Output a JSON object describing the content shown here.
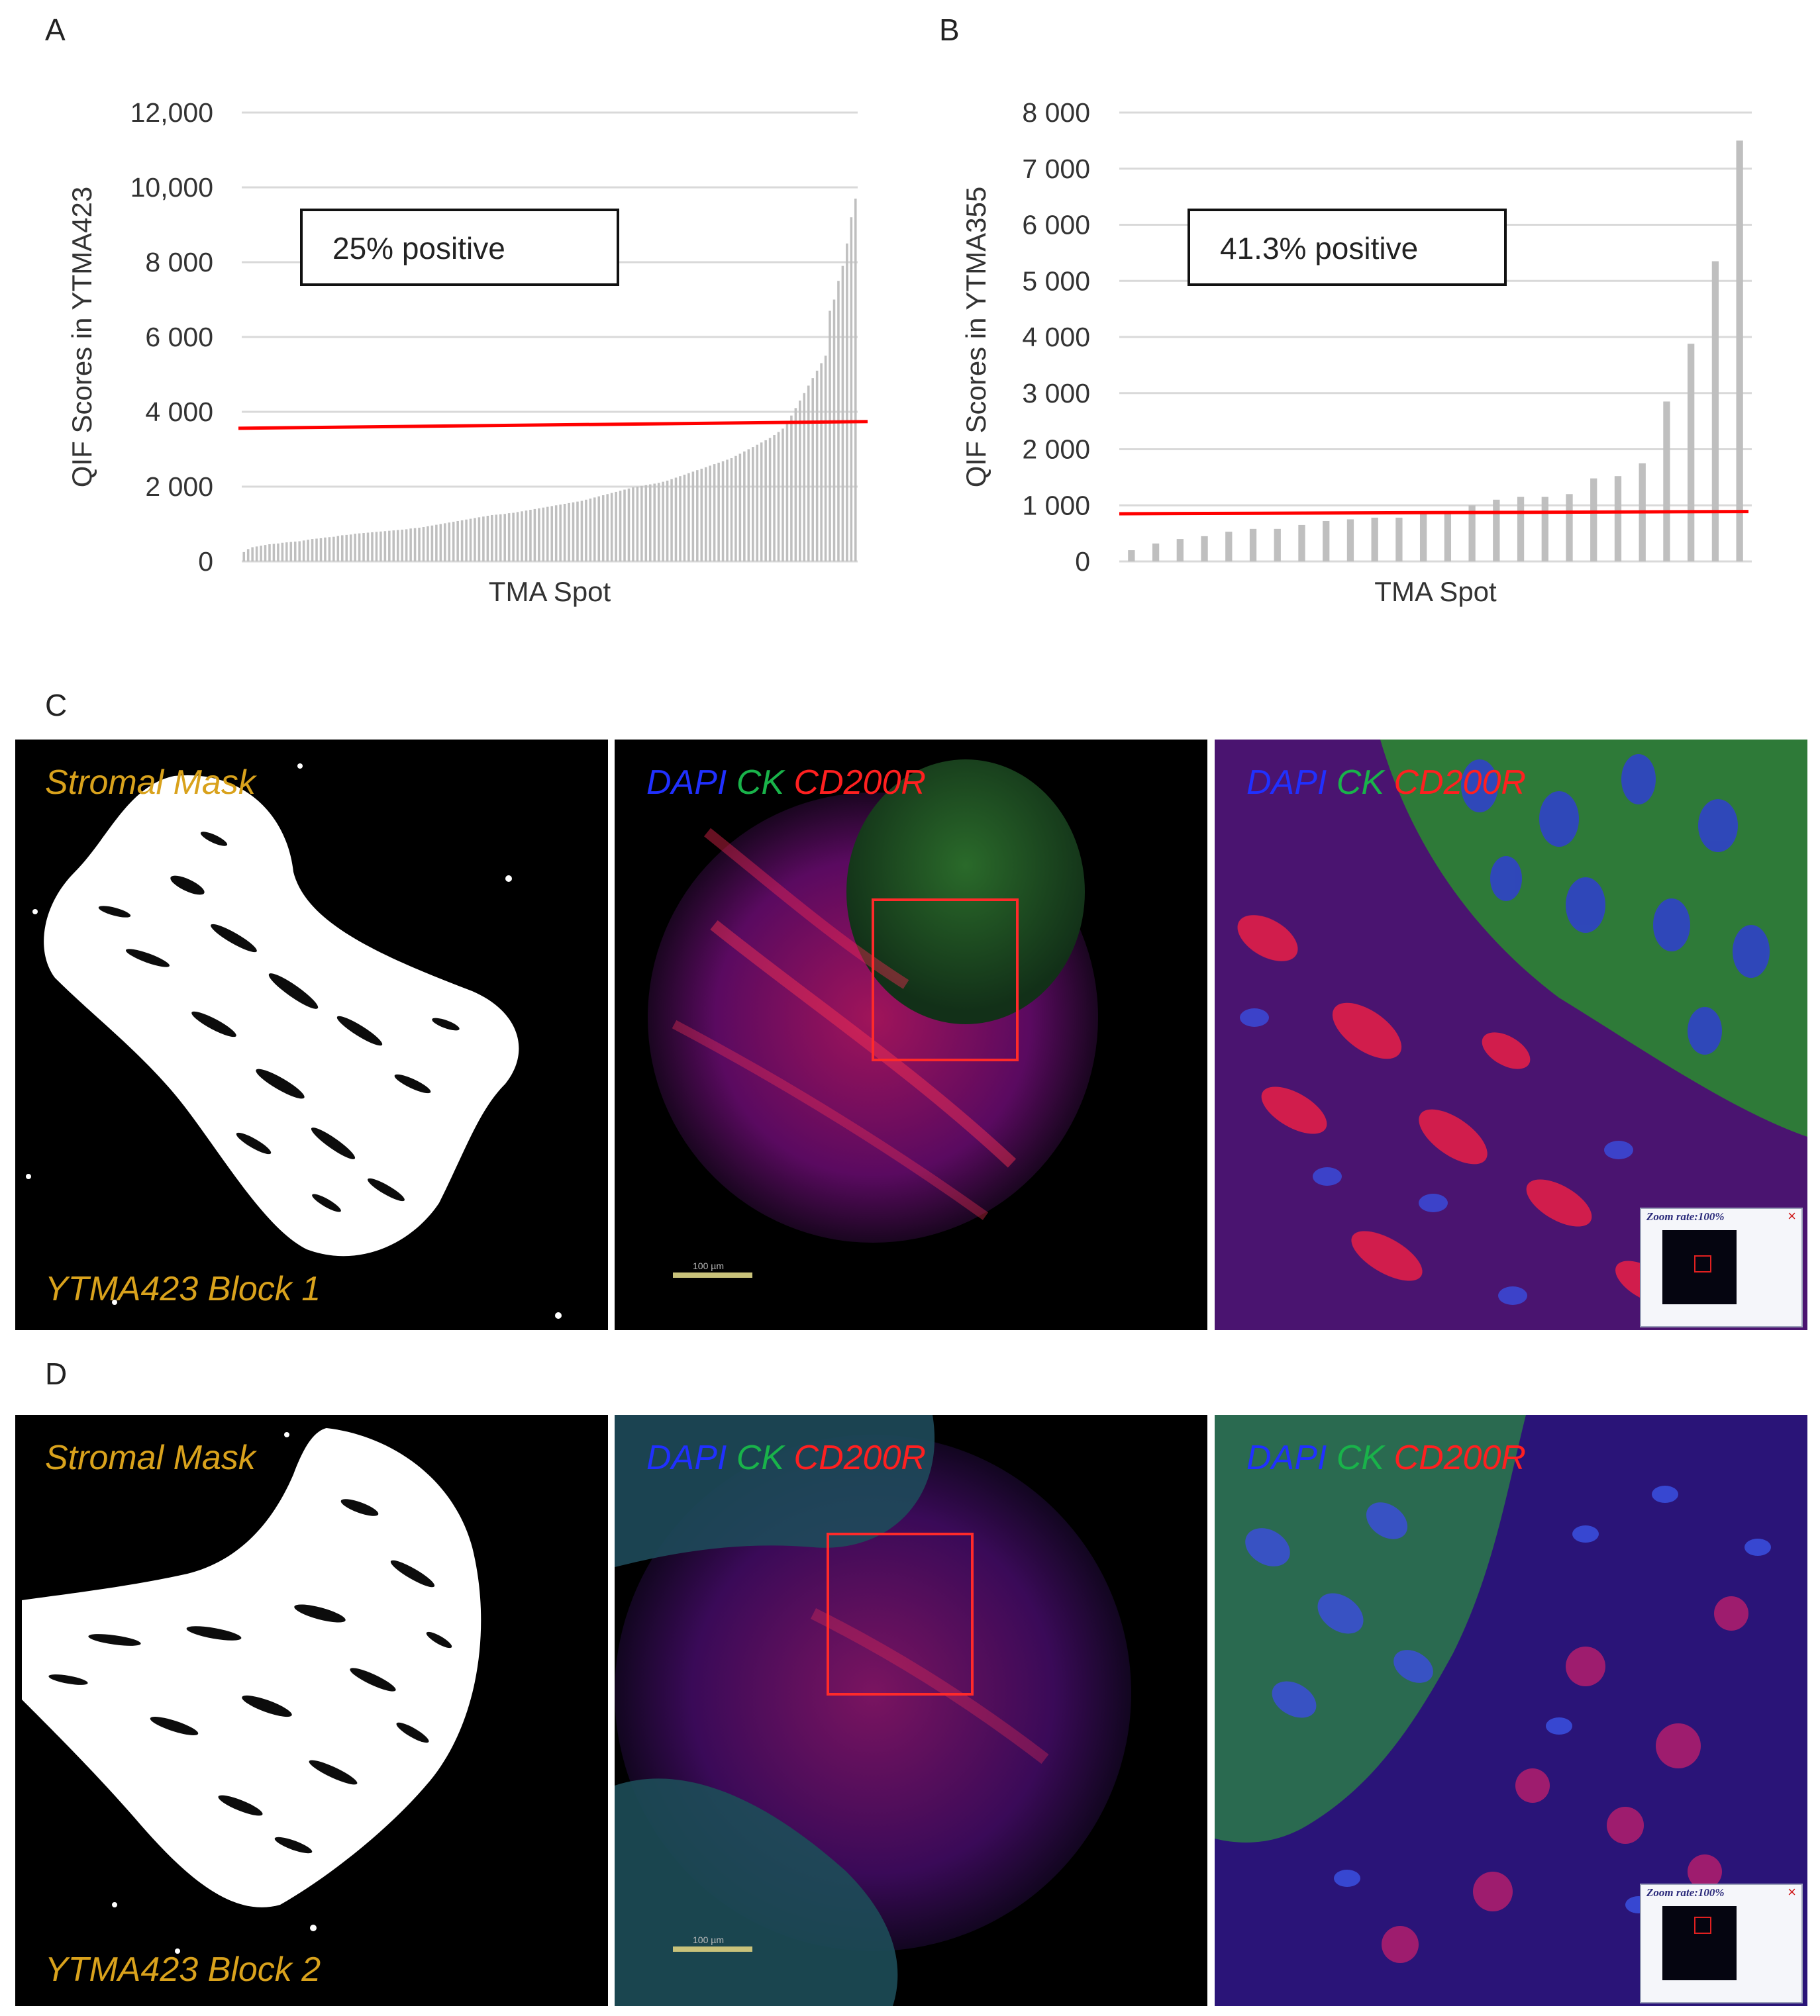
{
  "panels": {
    "a": "A",
    "b": "B",
    "c": "C",
    "d": "D"
  },
  "chart_data": [
    {
      "type": "bar",
      "panel": "A",
      "ylabel": "QIF Scores in YTMA423",
      "xlabel": "TMA Spot",
      "yticks": [
        "0",
        "2 000",
        "4 000",
        "6 000",
        "8 000",
        "10,000",
        "12,000"
      ],
      "ylim": [
        0,
        12000
      ],
      "grid": true,
      "bar_color": "#bfbfbf",
      "threshold": 3650,
      "threshold_color": "#ff0000",
      "annotation": "25% positive",
      "values": [
        250,
        330,
        380,
        400,
        420,
        440,
        460,
        470,
        480,
        500,
        510,
        520,
        530,
        540,
        560,
        580,
        600,
        610,
        620,
        640,
        650,
        660,
        680,
        700,
        710,
        720,
        740,
        750,
        760,
        770,
        780,
        790,
        800,
        810,
        820,
        830,
        840,
        850,
        860,
        880,
        890,
        900,
        920,
        940,
        960,
        980,
        1000,
        1020,
        1040,
        1060,
        1080,
        1100,
        1120,
        1140,
        1160,
        1180,
        1200,
        1220,
        1240,
        1250,
        1260,
        1270,
        1290,
        1300,
        1320,
        1340,
        1360,
        1380,
        1400,
        1420,
        1440,
        1460,
        1480,
        1500,
        1520,
        1540,
        1560,
        1580,
        1600,
        1620,
        1650,
        1680,
        1710,
        1740,
        1770,
        1800,
        1830,
        1860,
        1890,
        1920,
        1950,
        1980,
        2000,
        2020,
        2040,
        2060,
        2080,
        2100,
        2130,
        2160,
        2200,
        2240,
        2280,
        2320,
        2360,
        2400,
        2440,
        2480,
        2520,
        2560,
        2600,
        2640,
        2680,
        2720,
        2760,
        2820,
        2880,
        2940,
        3000,
        3060,
        3120,
        3180,
        3240,
        3300,
        3380,
        3460,
        3550,
        3700,
        3900,
        4100,
        4300,
        4500,
        4700,
        4900,
        5100,
        5300,
        5500,
        6700,
        7000,
        7500,
        7900,
        8500,
        9200,
        9700
      ]
    },
    {
      "type": "bar",
      "panel": "B",
      "ylabel": "QIF Scores in YTMA355",
      "xlabel": "TMA Spot",
      "yticks": [
        "0",
        "1 000",
        "2 000",
        "3 000",
        "4 000",
        "5 000",
        "6 000",
        "7 000",
        "8 000"
      ],
      "ylim": [
        0,
        8000
      ],
      "grid": true,
      "bar_color": "#bfbfbf",
      "threshold": 880,
      "threshold_color": "#ff0000",
      "annotation": "41.3% positive",
      "values": [
        200,
        320,
        400,
        450,
        530,
        580,
        580,
        650,
        720,
        750,
        780,
        780,
        850,
        900,
        1000,
        1100,
        1150,
        1150,
        1200,
        1480,
        1520,
        1750,
        2850,
        3880,
        5350,
        7500
      ]
    }
  ],
  "images": {
    "c": {
      "mask_label": "Stromal Mask",
      "block_label": "YTMA423 Block 1",
      "ch_dapi": "DAPI",
      "ch_ck": "CK",
      "ch_cd": "CD200R",
      "scale_label": "100 µm",
      "zoom_label": "Zoom rate:100%",
      "close_glyph": "×"
    },
    "d": {
      "mask_label": "Stromal Mask",
      "block_label": "YTMA423 Block 2",
      "ch_dapi": "DAPI",
      "ch_ck": "CK",
      "ch_cd": "CD200R",
      "scale_label": "100 µm",
      "zoom_label": "Zoom rate:100%",
      "close_glyph": "×"
    }
  }
}
